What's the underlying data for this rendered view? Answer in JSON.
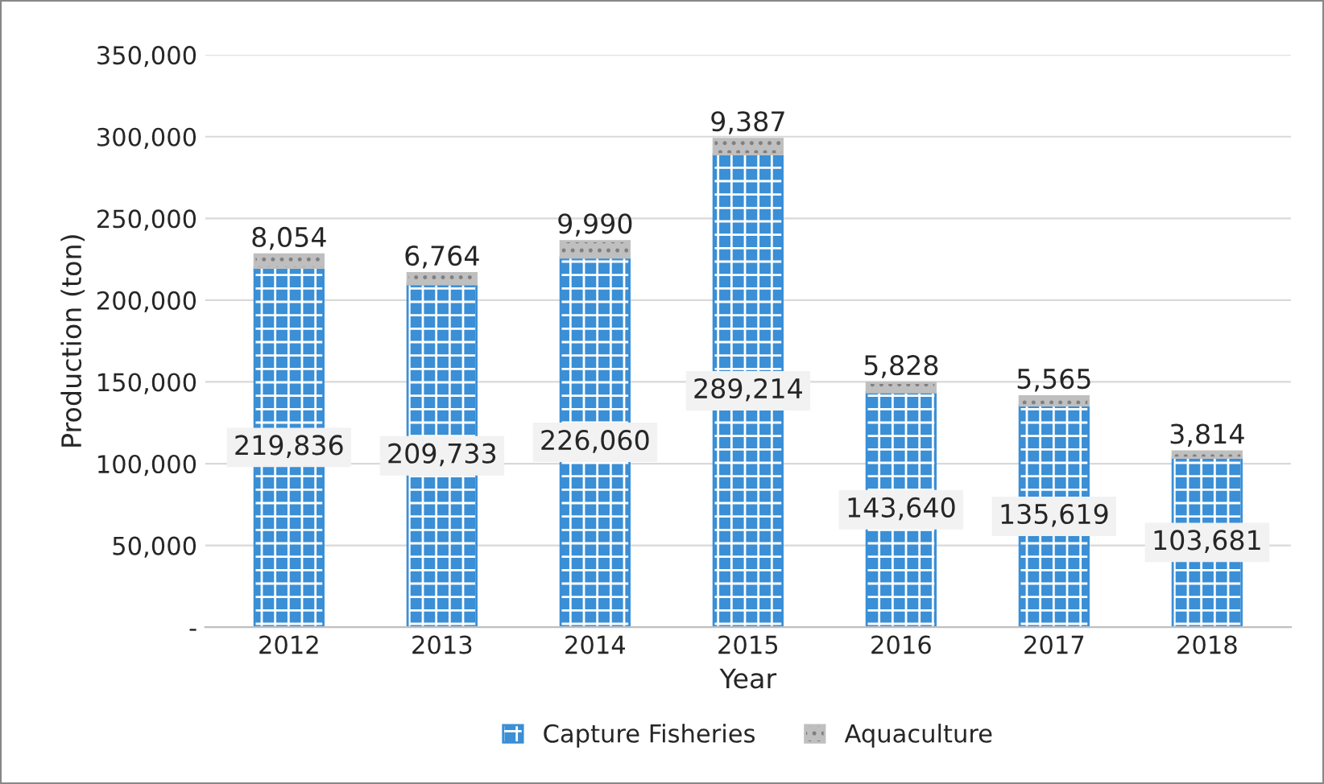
{
  "chart_data": {
    "type": "bar",
    "stacked": true,
    "xlabel": "Year",
    "ylabel": "Production (ton)",
    "categories": [
      "2012",
      "2013",
      "2014",
      "2015",
      "2016",
      "2017",
      "2018"
    ],
    "series": [
      {
        "name": "Capture Fisheries",
        "color": "#3a8fd6",
        "values": [
          219836,
          209733,
          226060,
          289214,
          143640,
          135619,
          103681
        ],
        "value_labels": [
          "219,836",
          "209,733",
          "226,060",
          "289,214",
          "143,640",
          "135,619",
          "103,681"
        ]
      },
      {
        "name": "Aquaculture",
        "color": "#bfbfbf",
        "values": [
          8054,
          6764,
          9990,
          9387,
          5828,
          5565,
          3814
        ],
        "value_labels": [
          "8,054",
          "6,764",
          "9,990",
          "9,387",
          "5,828",
          "5,565",
          "3,814"
        ]
      }
    ],
    "ylim": [
      0,
      350000
    ],
    "yticks": [
      {
        "value": 0,
        "label": "-"
      },
      {
        "value": 50000,
        "label": "50,000"
      },
      {
        "value": 100000,
        "label": "100,000"
      },
      {
        "value": 150000,
        "label": "150,000"
      },
      {
        "value": 200000,
        "label": "200,000"
      },
      {
        "value": 250000,
        "label": "250,000"
      },
      {
        "value": 300000,
        "label": "300,000"
      },
      {
        "value": 350000,
        "label": "350,000"
      }
    ],
    "grid": "y",
    "legend": "bottom"
  }
}
